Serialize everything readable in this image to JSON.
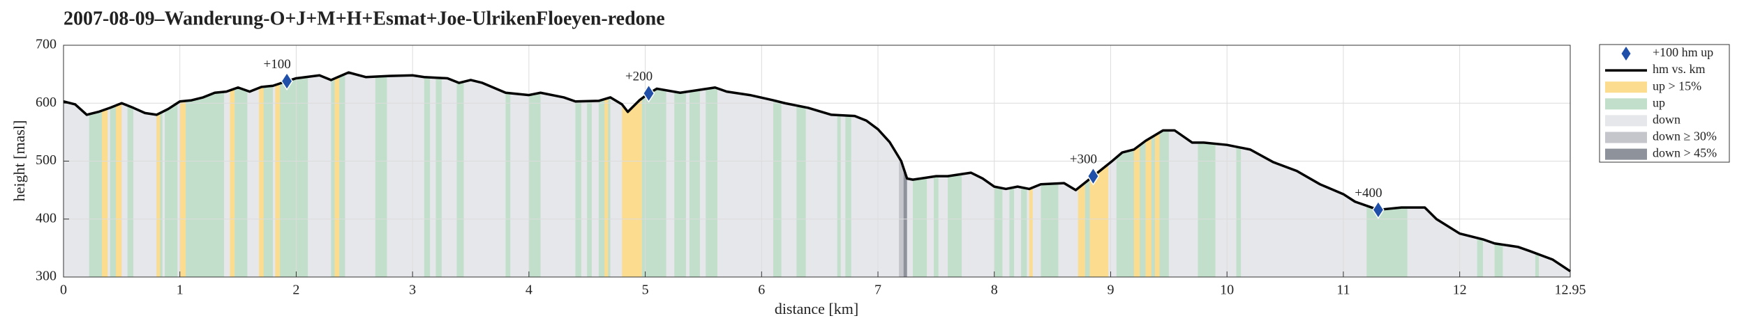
{
  "chart_data": {
    "type": "line",
    "title": "2007-08-09–Wanderung-O+J+M+H+Esmat+Joe-UlrikenFloeyen-redone",
    "x_label": "distance [km]",
    "y_label": "height [masl]",
    "xlim": [
      0,
      12.95
    ],
    "xticks": [
      0,
      1,
      2,
      3,
      4,
      5,
      6,
      7,
      8,
      9,
      10,
      11,
      12,
      12.95
    ],
    "ylim": [
      300,
      700
    ],
    "yticks": [
      300,
      400,
      500,
      600,
      700
    ],
    "grid": true,
    "legend": "outside-right",
    "bands": [
      {
        "name": "down",
        "color": "#e6e7ea",
        "intervals": [
          [
            0,
            12.95
          ]
        ]
      },
      {
        "name": "up",
        "color": "#c2dfcb",
        "intervals": [
          [
            0.22,
            0.35
          ],
          [
            0.4,
            0.47
          ],
          [
            0.55,
            0.6
          ],
          [
            0.8,
            0.85
          ],
          [
            0.87,
            0.98
          ],
          [
            1.05,
            1.38
          ],
          [
            1.47,
            1.58
          ],
          [
            1.7,
            1.8
          ],
          [
            1.85,
            2.1
          ],
          [
            2.3,
            2.42
          ],
          [
            2.68,
            2.78
          ],
          [
            3.1,
            3.15
          ],
          [
            3.2,
            3.25
          ],
          [
            3.38,
            3.44
          ],
          [
            3.8,
            3.84
          ],
          [
            4.0,
            4.1
          ],
          [
            4.4,
            4.45
          ],
          [
            4.5,
            4.54
          ],
          [
            4.6,
            4.7
          ],
          [
            4.97,
            5.18
          ],
          [
            5.25,
            5.35
          ],
          [
            5.38,
            5.47
          ],
          [
            5.52,
            5.62
          ],
          [
            6.1,
            6.17
          ],
          [
            6.3,
            6.38
          ],
          [
            6.65,
            6.68
          ],
          [
            6.72,
            6.77
          ],
          [
            7.3,
            7.42
          ],
          [
            7.48,
            7.52
          ],
          [
            7.6,
            7.72
          ],
          [
            8.0,
            8.07
          ],
          [
            8.13,
            8.17
          ],
          [
            8.23,
            8.28
          ],
          [
            8.4,
            8.55
          ],
          [
            8.75,
            8.82
          ],
          [
            9.05,
            9.5
          ],
          [
            9.75,
            9.9
          ],
          [
            10.08,
            10.12
          ],
          [
            11.2,
            11.55
          ],
          [
            12.15,
            12.2
          ],
          [
            12.3,
            12.37
          ],
          [
            12.65,
            12.68
          ]
        ]
      },
      {
        "name": "up > 15%",
        "color": "#fcdc8e",
        "intervals": [
          [
            0.33,
            0.38
          ],
          [
            0.45,
            0.5
          ],
          [
            0.8,
            0.83
          ],
          [
            1.0,
            1.05
          ],
          [
            1.43,
            1.47
          ],
          [
            1.68,
            1.72
          ],
          [
            1.82,
            1.86
          ],
          [
            2.33,
            2.37
          ],
          [
            4.65,
            4.68
          ],
          [
            4.8,
            4.97
          ],
          [
            8.3,
            8.33
          ],
          [
            8.72,
            8.78
          ],
          [
            8.82,
            8.98
          ],
          [
            9.2,
            9.25
          ],
          [
            9.3,
            9.35
          ],
          [
            9.38,
            9.42
          ]
        ]
      },
      {
        "name": "down ≥ 30%",
        "color": "#c4c6cc",
        "intervals": [
          [
            7.18,
            7.22
          ]
        ]
      },
      {
        "name": "down > 45%",
        "color": "#8e929b",
        "intervals": [
          [
            7.22,
            7.25
          ]
        ]
      }
    ],
    "series": [
      {
        "name": "hm vs. km",
        "color": "#000000",
        "x": [
          0,
          0.1,
          0.2,
          0.3,
          0.4,
          0.5,
          0.6,
          0.7,
          0.8,
          0.9,
          1.0,
          1.1,
          1.2,
          1.3,
          1.4,
          1.5,
          1.6,
          1.7,
          1.8,
          1.92,
          2.0,
          2.2,
          2.3,
          2.45,
          2.6,
          2.8,
          3.0,
          3.1,
          3.3,
          3.4,
          3.5,
          3.6,
          3.8,
          4.0,
          4.1,
          4.3,
          4.4,
          4.6,
          4.7,
          4.8,
          4.85,
          4.95,
          5.03,
          5.1,
          5.3,
          5.5,
          5.6,
          5.7,
          5.9,
          6.1,
          6.2,
          6.4,
          6.6,
          6.8,
          6.9,
          7.0,
          7.1,
          7.2,
          7.25,
          7.3,
          7.5,
          7.6,
          7.8,
          7.9,
          8.0,
          8.1,
          8.2,
          8.3,
          8.4,
          8.6,
          8.7,
          8.85,
          9.0,
          9.1,
          9.2,
          9.3,
          9.45,
          9.55,
          9.7,
          9.8,
          10.0,
          10.2,
          10.4,
          10.6,
          10.8,
          11.0,
          11.1,
          11.3,
          11.5,
          11.7,
          11.8,
          12.0,
          12.2,
          12.3,
          12.5,
          12.6,
          12.8,
          12.95
        ],
        "values": [
          603,
          598,
          580,
          585,
          592,
          600,
          592,
          583,
          580,
          590,
          603,
          605,
          610,
          618,
          620,
          627,
          620,
          628,
          630,
          638,
          643,
          648,
          640,
          653,
          645,
          647,
          648,
          645,
          643,
          635,
          640,
          635,
          618,
          614,
          618,
          610,
          603,
          604,
          610,
          598,
          585,
          605,
          617,
          625,
          618,
          624,
          627,
          620,
          614,
          605,
          600,
          592,
          580,
          578,
          570,
          555,
          533,
          500,
          470,
          468,
          474,
          474,
          480,
          470,
          456,
          452,
          456,
          452,
          460,
          462,
          450,
          474,
          498,
          515,
          520,
          535,
          553,
          553,
          532,
          532,
          528,
          520,
          498,
          483,
          460,
          443,
          430,
          416,
          420,
          420,
          400,
          375,
          365,
          358,
          352,
          345,
          330,
          310
        ]
      }
    ],
    "markers": {
      "name": "+100 hm up",
      "color": "#1f4fa8",
      "x": [
        1.92,
        5.03,
        8.85,
        11.3
      ],
      "values": [
        638,
        617,
        474,
        416
      ],
      "labels": [
        "+100",
        "+200",
        "+300",
        "+400"
      ]
    }
  }
}
